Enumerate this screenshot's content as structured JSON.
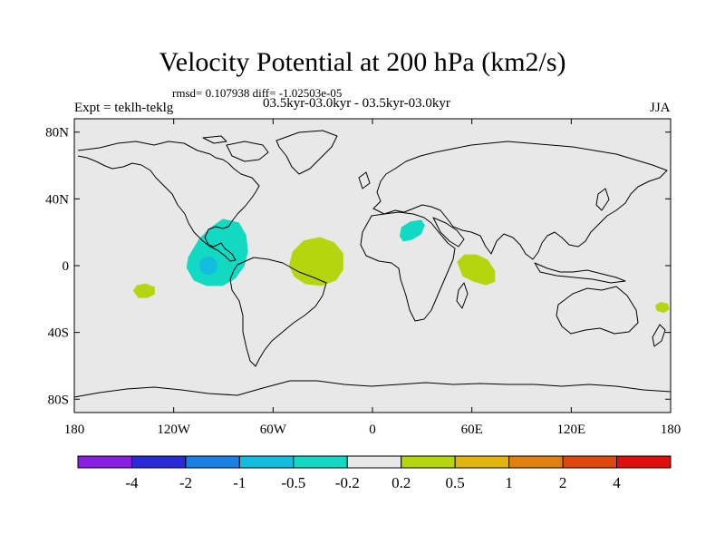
{
  "title": "Velocity Potential at 200 hPa (km2/s)",
  "stats_line": "rmsd= 0.107938 diff= -1.02503e-05",
  "left_label": "Expt = teklh-teklg",
  "center_label": "03.5kyr-03.0kyr - 03.5kyr-03.0kyr",
  "right_label": "JJA",
  "lat_ticks": [
    {
      "lat": 80,
      "label": "80N"
    },
    {
      "lat": 40,
      "label": "40N"
    },
    {
      "lat": 0,
      "label": "0"
    },
    {
      "lat": -40,
      "label": "40S"
    },
    {
      "lat": -80,
      "label": "80S"
    }
  ],
  "lon_ticks": [
    {
      "lon": -180,
      "label": "180"
    },
    {
      "lon": -120,
      "label": "120W"
    },
    {
      "lon": -60,
      "label": "60W"
    },
    {
      "lon": 0,
      "label": "0"
    },
    {
      "lon": 60,
      "label": "60E"
    },
    {
      "lon": 120,
      "label": "120E"
    },
    {
      "lon": 180,
      "label": "180"
    }
  ],
  "colorbar": {
    "colors": [
      "#8a1ee0",
      "#2a2ad6",
      "#1a7fe0",
      "#12bde0",
      "#12d9c2",
      "#e8e8e8",
      "#b5d60e",
      "#e0b50e",
      "#e0800e",
      "#e0460e",
      "#e00e0e"
    ],
    "labels": [
      "-4",
      "-2",
      "-1",
      "-0.5",
      "-0.2",
      "0.2",
      "0.5",
      "1",
      "2",
      "4"
    ]
  },
  "anomalies": [
    {
      "name": "anomaly-central-america",
      "category": "-0.2 to -0.5",
      "lon": -97,
      "lat": 2,
      "color": "#12d9c2"
    },
    {
      "name": "anomaly-central-america-core",
      "category": "-0.5 to -1",
      "lon": -99,
      "lat": 0,
      "color": "#12bde0"
    },
    {
      "name": "anomaly-south-atlantic",
      "category": "0.2 to 0.5",
      "lon": -34,
      "lat": 2,
      "color": "#b5d60e"
    },
    {
      "name": "anomaly-north-africa",
      "category": "-0.2 to -0.5",
      "lon": 24,
      "lat": 21,
      "color": "#12d9c2"
    },
    {
      "name": "anomaly-indian-ocean",
      "category": "0.2 to 0.5",
      "lon": 62,
      "lat": -2,
      "color": "#b5d60e"
    },
    {
      "name": "anomaly-south-pacific",
      "category": "0.2 to 0.5",
      "lon": -138,
      "lat": -15,
      "color": "#b5d60e"
    },
    {
      "name": "anomaly-new-zealand",
      "category": "0.2 to 0.5",
      "lon": 175,
      "lat": -25,
      "color": "#b5d60e"
    }
  ]
}
